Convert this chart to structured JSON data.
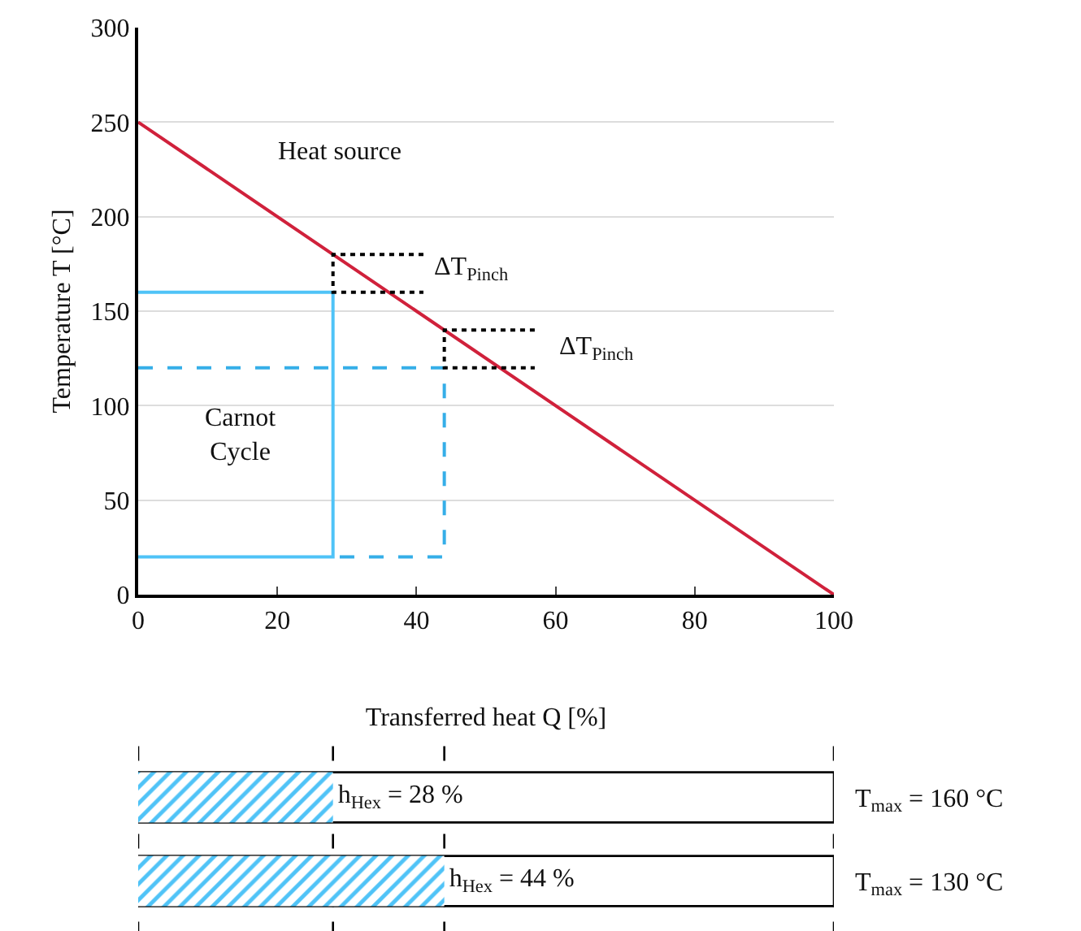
{
  "chart_data": [
    {
      "type": "line",
      "xlabel": "Transferred heat Q [%]",
      "ylabel": "Temperature T [°C]",
      "xlim": [
        0,
        100
      ],
      "xticks": [
        0,
        20,
        40,
        60,
        80,
        100
      ],
      "ylim": [
        0,
        300
      ],
      "yticks": [
        0,
        50,
        100,
        150,
        200,
        250,
        300
      ],
      "grid": "y",
      "legend": false,
      "marker": "none",
      "series": [
        {
          "x": [
            0,
            100
          ],
          "values": [
            250,
            0
          ],
          "color": "#d0213b",
          "line_style": "solid"
        },
        {
          "x": [
            0,
            28,
            28,
            0
          ],
          "values": [
            160,
            160,
            20,
            20
          ],
          "color": "#4fc3f7",
          "line_style": "solid"
        },
        {
          "x": [
            0,
            44,
            44,
            28
          ],
          "values": [
            120,
            120,
            20,
            20
          ],
          "color": "#35aee8",
          "line_style": "dashed"
        },
        {
          "x": [
            41,
            28,
            28,
            41
          ],
          "values": [
            180,
            180,
            160,
            160
          ],
          "color": "#000000",
          "line_style": "dotted"
        },
        {
          "x": [
            57,
            44,
            44,
            57
          ],
          "values": [
            140,
            140,
            120,
            120
          ],
          "color": "#000000",
          "line_style": "dotted"
        }
      ],
      "annotations": [
        "Heat source",
        "Carnot\nCycle",
        "ΔT$_{Pinch}$",
        "ΔT$_{Pinch}$"
      ]
    },
    {
      "type": "bar",
      "orientation": "horizontal",
      "categories": [
        "T$_{max}$ = 160 °C",
        "T$_{max}$ = 130 °C"
      ],
      "xlim": [
        0,
        100
      ],
      "tick_labels": "y",
      "legend": false,
      "series": [
        {
          "color": "#4fc3f7",
          "values": [
            28,
            44
          ],
          "value_labels": [
            "h$_{Hex}$ = 28 %",
            "h$_{Hex}$ = 44 %"
          ]
        }
      ],
      "ref_lines": [
        {
          "axis": "x",
          "value": 0,
          "line_style": "dashed",
          "color": "#000000"
        },
        {
          "axis": "x",
          "value": 28,
          "line_style": "dashed",
          "color": "#000000"
        },
        {
          "axis": "x",
          "value": 44,
          "line_style": "dashed",
          "color": "#000000"
        },
        {
          "axis": "x",
          "value": 100,
          "line_style": "dashed",
          "color": "#000000"
        }
      ]
    }
  ]
}
